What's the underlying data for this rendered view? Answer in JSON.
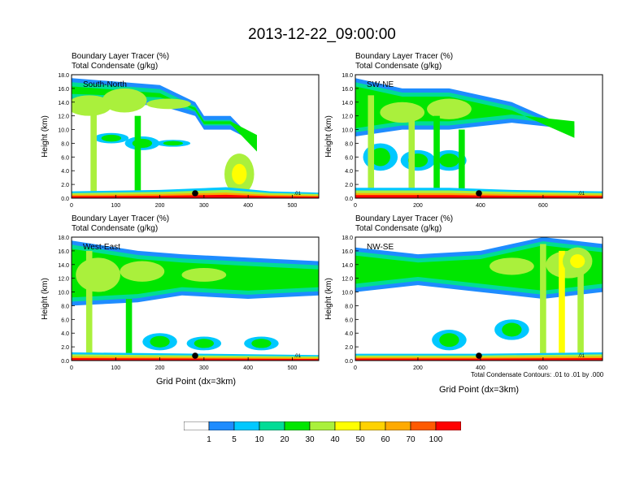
{
  "figure": {
    "title": "2013-12-22_09:00:00",
    "xlabel": "Grid Point (dx=3km)",
    "ylabel": "Height (km)",
    "footnote": "Total Condensate Contours: .01 to .01 by .000",
    "header_line1": "Boundary Layer Tracer   (%)",
    "header_line2": "Total Condensate   (g/kg)"
  },
  "colors": {
    "levels": [
      "#ffffff",
      "#1e8cff",
      "#00c8ff",
      "#00dc96",
      "#00e600",
      "#aaf03c",
      "#ffff00",
      "#ffd200",
      "#ffaa00",
      "#ff5a00",
      "#ff0000"
    ],
    "marker": "#000000"
  },
  "colorbar": {
    "labels": [
      "1",
      "5",
      "10",
      "20",
      "30",
      "40",
      "50",
      "60",
      "70",
      "100"
    ]
  },
  "chart_data": [
    {
      "type": "heatmap",
      "panel_label": "South-North",
      "xlim": [
        0,
        560
      ],
      "ylim": [
        0,
        18
      ],
      "x_ticks": [
        0,
        100,
        200,
        300,
        400,
        500
      ],
      "y_ticks": [
        "0.0",
        "2.0",
        "4.0",
        "6.0",
        "8.0",
        "10.0",
        "12.0",
        "14.0",
        "16.0",
        "18.0"
      ],
      "marker_x": 280,
      "contour_label": ".01",
      "anvil": [
        [
          0,
          17.5,
          14.0,
          30
        ],
        [
          200,
          16.5,
          13.5,
          30
        ],
        [
          280,
          14.0,
          12.0,
          30
        ],
        [
          300,
          12.0,
          10.0,
          20
        ],
        [
          360,
          12.0,
          10.0,
          20
        ],
        [
          420,
          8.0,
          8.0,
          5
        ]
      ],
      "anvil_core": [
        [
          40,
          15.0,
          12.0
        ],
        [
          120,
          16.0,
          12.5
        ],
        [
          220,
          14.5,
          13.0
        ]
      ],
      "low_cloud": [
        [
          90,
          9.5,
          8.0
        ],
        [
          160,
          9.0,
          7.0
        ],
        [
          230,
          8.5,
          7.5
        ]
      ],
      "boundary_top": [
        [
          0,
          1.0
        ],
        [
          200,
          1.2
        ],
        [
          350,
          1.6
        ],
        [
          450,
          1.0
        ],
        [
          560,
          0.8
        ]
      ],
      "towers": [
        [
          50,
          0.5,
          14.0,
          30
        ],
        [
          150,
          0.5,
          12.0,
          20
        ]
      ],
      "cells": [
        [
          380,
          3.5,
          45,
          3.0
        ]
      ]
    },
    {
      "type": "heatmap",
      "panel_label": "SW-NE",
      "xlim": [
        0,
        790
      ],
      "ylim": [
        0,
        18
      ],
      "x_ticks": [
        0,
        200,
        400,
        600
      ],
      "y_ticks": [
        "0.0",
        "2.0",
        "4.0",
        "6.0",
        "8.0",
        "10.0",
        "12.0",
        "14.0",
        "16.0",
        "18.0"
      ],
      "marker_x": 395,
      "contour_label": ".01",
      "anvil": [
        [
          0,
          17.5,
          9.0,
          30
        ],
        [
          150,
          16.0,
          10.0,
          30
        ],
        [
          300,
          16.0,
          10.0,
          30
        ],
        [
          500,
          14.0,
          11.0,
          20
        ],
        [
          600,
          12.0,
          10.5,
          10
        ],
        [
          700,
          10.0,
          10.0,
          1
        ]
      ],
      "anvil_core": [
        [
          150,
          14.0,
          11.0
        ],
        [
          300,
          14.5,
          11.5
        ]
      ],
      "low_cloud": [
        [
          80,
          8.0,
          4.0
        ],
        [
          200,
          7.0,
          4.0
        ],
        [
          300,
          7.0,
          4.0
        ]
      ],
      "boundary_top": [
        [
          0,
          1.5
        ],
        [
          300,
          1.5
        ],
        [
          500,
          1.2
        ],
        [
          790,
          1.0
        ]
      ],
      "towers": [
        [
          50,
          0.5,
          15.0,
          30
        ],
        [
          180,
          0.5,
          12.0,
          30
        ],
        [
          260,
          0.5,
          12.0,
          20
        ],
        [
          340,
          0.5,
          10.0,
          20
        ]
      ],
      "cells": []
    },
    {
      "type": "heatmap",
      "panel_label": "West-East",
      "xlim": [
        0,
        560
      ],
      "ylim": [
        0,
        18
      ],
      "x_ticks": [
        0,
        100,
        200,
        300,
        400,
        500
      ],
      "y_ticks": [
        "0.0",
        "2.0",
        "4.0",
        "6.0",
        "8.0",
        "10.0",
        "12.0",
        "14.0",
        "16.0",
        "18.0"
      ],
      "marker_x": 280,
      "contour_label": ".01",
      "anvil": [
        [
          0,
          17.5,
          8.0,
          30
        ],
        [
          150,
          16.0,
          8.5,
          30
        ],
        [
          250,
          15.5,
          9.5,
          30
        ],
        [
          400,
          15.0,
          9.0,
          20
        ],
        [
          560,
          14.5,
          9.5,
          10
        ]
      ],
      "anvil_core": [
        [
          60,
          15.0,
          10.0
        ],
        [
          160,
          14.5,
          11.5
        ],
        [
          300,
          13.5,
          11.5
        ]
      ],
      "low_cloud": [
        [
          200,
          4.0,
          1.5
        ],
        [
          300,
          3.5,
          1.5
        ],
        [
          430,
          3.5,
          1.5
        ]
      ],
      "boundary_top": [
        [
          0,
          1.2
        ],
        [
          300,
          1.0
        ],
        [
          560,
          0.8
        ]
      ],
      "towers": [
        [
          40,
          0.5,
          16.0,
          30
        ],
        [
          130,
          0.5,
          9.0,
          20
        ]
      ],
      "cells": []
    },
    {
      "type": "heatmap",
      "panel_label": "NW-SE",
      "xlim": [
        0,
        790
      ],
      "ylim": [
        0,
        18
      ],
      "x_ticks": [
        0,
        200,
        400,
        600
      ],
      "y_ticks": [
        "0.0",
        "2.0",
        "4.0",
        "6.0",
        "8.0",
        "10.0",
        "12.0",
        "14.0",
        "16.0",
        "18.0"
      ],
      "marker_x": 395,
      "contour_label": ".01",
      "anvil": [
        [
          0,
          16.5,
          10.0,
          20
        ],
        [
          200,
          15.5,
          11.0,
          20
        ],
        [
          400,
          16.0,
          10.0,
          30
        ],
        [
          600,
          18.0,
          9.0,
          40
        ],
        [
          790,
          17.0,
          10.0,
          30
        ]
      ],
      "anvil_core": [
        [
          500,
          15.0,
          12.5
        ],
        [
          680,
          16.0,
          12.0
        ]
      ],
      "low_cloud": [
        [
          300,
          4.5,
          1.5
        ],
        [
          500,
          6.0,
          3.0
        ]
      ],
      "boundary_top": [
        [
          0,
          1.0
        ],
        [
          400,
          1.0
        ],
        [
          790,
          1.2
        ]
      ],
      "towers": [
        [
          600,
          0.5,
          17.0,
          30
        ],
        [
          660,
          0.5,
          16.0,
          40
        ],
        [
          720,
          0.5,
          15.0,
          30
        ]
      ],
      "cells": [
        [
          710,
          14.5,
          40,
          2.0
        ]
      ]
    }
  ]
}
